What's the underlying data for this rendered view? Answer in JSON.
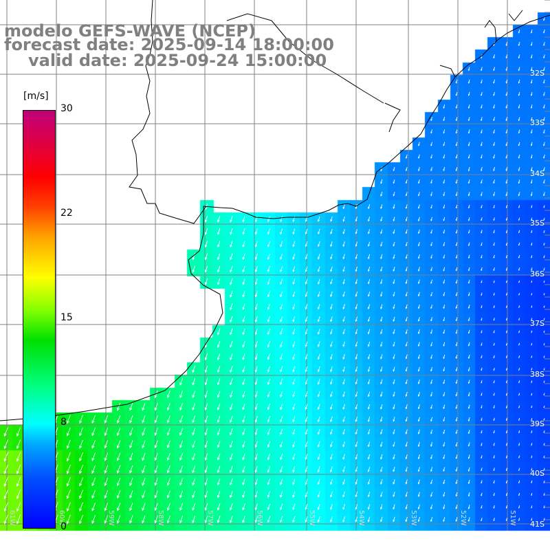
{
  "title": {
    "line1": "modelo GEFS-WAVE (NCEP)",
    "line2": "forecast date: 2025-09-14 18:00:00",
    "line3": "valid date: 2025-09-24 15:00:00"
  },
  "colorbar": {
    "unit": "[m/s]",
    "ticks": [
      {
        "label": "30",
        "value": 30
      },
      {
        "label": "22",
        "value": 22
      },
      {
        "label": "15",
        "value": 15
      },
      {
        "label": "8",
        "value": 8
      },
      {
        "label": "0",
        "value": 0
      }
    ],
    "colors": [
      "#0000ff",
      "#00a8ff",
      "#00ffff",
      "#00e000",
      "#ffff00",
      "#ff8000",
      "#ff0000",
      "#c0007a"
    ]
  },
  "map": {
    "variable": "wind speed",
    "lat_labels": [
      "32S",
      "33S",
      "34S",
      "35S",
      "36S",
      "37S",
      "38S",
      "39S",
      "40S",
      "41S"
    ],
    "lon_labels": [
      "61W",
      "60W",
      "59W",
      "58W",
      "57W",
      "56W",
      "55W",
      "54W",
      "53W",
      "52W",
      "51W"
    ],
    "lat_range": [
      "31S",
      "41.5S"
    ],
    "lon_range": [
      "61W",
      "50.5W"
    ],
    "land_color": "#ffffff",
    "grid_color": "#808080",
    "arrow_color": "#ffffff",
    "wind_direction": "southwestward"
  }
}
